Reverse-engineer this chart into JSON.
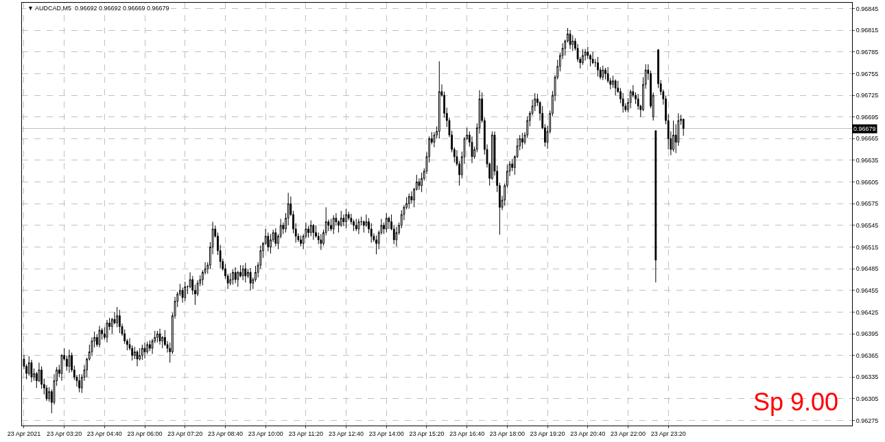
{
  "chart_data": {
    "type": "candlestick",
    "title": "▼ AUDCAD,M5  0.96692 0.96692 0.96669 0.96679",
    "x": [
      "2021-04-23T02:00",
      "2021-04-23T02:05",
      "2021-04-23T02:10",
      "2021-04-23T02:15",
      "2021-04-23T02:20",
      "2021-04-23T02:25",
      "2021-04-23T02:30",
      "2021-04-23T02:35",
      "2021-04-23T02:40",
      "2021-04-23T02:45",
      "2021-04-23T02:50",
      "2021-04-23T02:55",
      "2021-04-23T03:00",
      "2021-04-23T03:05",
      "2021-04-23T03:10",
      "2021-04-23T03:15",
      "2021-04-23T03:20",
      "2021-04-23T03:25",
      "2021-04-23T03:30",
      "2021-04-23T03:35",
      "2021-04-23T03:40",
      "2021-04-23T03:45",
      "2021-04-23T03:50",
      "2021-04-23T03:55",
      "2021-04-23T04:00",
      "2021-04-23T04:05",
      "2021-04-23T04:10",
      "2021-04-23T04:15",
      "2021-04-23T04:20",
      "2021-04-23T04:25",
      "2021-04-23T04:30",
      "2021-04-23T04:35",
      "2021-04-23T04:40",
      "2021-04-23T04:45",
      "2021-04-23T04:50",
      "2021-04-23T04:55",
      "2021-04-23T05:00",
      "2021-04-23T05:05",
      "2021-04-23T05:10",
      "2021-04-23T05:15",
      "2021-04-23T05:20",
      "2021-04-23T05:25",
      "2021-04-23T05:30",
      "2021-04-23T05:35",
      "2021-04-23T05:40",
      "2021-04-23T05:45",
      "2021-04-23T05:50",
      "2021-04-23T05:55",
      "2021-04-23T06:00",
      "2021-04-23T06:05",
      "2021-04-23T06:10",
      "2021-04-23T06:15",
      "2021-04-23T06:20",
      "2021-04-23T06:25",
      "2021-04-23T06:30",
      "2021-04-23T06:35",
      "2021-04-23T06:40",
      "2021-04-23T06:45",
      "2021-04-23T06:50",
      "2021-04-23T06:55",
      "2021-04-23T07:00",
      "2021-04-23T07:05",
      "2021-04-23T07:10",
      "2021-04-23T07:15",
      "2021-04-23T07:20",
      "2021-04-23T07:25",
      "2021-04-23T07:30",
      "2021-04-23T07:35",
      "2021-04-23T07:40",
      "2021-04-23T07:45",
      "2021-04-23T07:50",
      "2021-04-23T07:55",
      "2021-04-23T08:00",
      "2021-04-23T08:05",
      "2021-04-23T08:10",
      "2021-04-23T08:15",
      "2021-04-23T08:20",
      "2021-04-23T08:25",
      "2021-04-23T08:30",
      "2021-04-23T08:35",
      "2021-04-23T08:40",
      "2021-04-23T08:45",
      "2021-04-23T08:50",
      "2021-04-23T08:55",
      "2021-04-23T09:00",
      "2021-04-23T09:05",
      "2021-04-23T09:10",
      "2021-04-23T09:15",
      "2021-04-23T09:20",
      "2021-04-23T09:25",
      "2021-04-23T09:30",
      "2021-04-23T09:35",
      "2021-04-23T09:40",
      "2021-04-23T09:45",
      "2021-04-23T09:50",
      "2021-04-23T09:55",
      "2021-04-23T10:00",
      "2021-04-23T10:05",
      "2021-04-23T10:10",
      "2021-04-23T10:15",
      "2021-04-23T10:20",
      "2021-04-23T10:25",
      "2021-04-23T10:30",
      "2021-04-23T10:35",
      "2021-04-23T10:40",
      "2021-04-23T10:45",
      "2021-04-23T10:50",
      "2021-04-23T10:55",
      "2021-04-23T11:00",
      "2021-04-23T11:05",
      "2021-04-23T11:10",
      "2021-04-23T11:15",
      "2021-04-23T11:20",
      "2021-04-23T11:25",
      "2021-04-23T11:30",
      "2021-04-23T11:35",
      "2021-04-23T11:40",
      "2021-04-23T11:45",
      "2021-04-23T11:50",
      "2021-04-23T11:55",
      "2021-04-23T12:00",
      "2021-04-23T12:05",
      "2021-04-23T12:10",
      "2021-04-23T12:15",
      "2021-04-23T12:20",
      "2021-04-23T12:25",
      "2021-04-23T12:30",
      "2021-04-23T12:35",
      "2021-04-23T12:40",
      "2021-04-23T12:45",
      "2021-04-23T12:50",
      "2021-04-23T12:55",
      "2021-04-23T13:00",
      "2021-04-23T13:05",
      "2021-04-23T13:10",
      "2021-04-23T13:15",
      "2021-04-23T13:20",
      "2021-04-23T13:25",
      "2021-04-23T13:30",
      "2021-04-23T13:35",
      "2021-04-23T13:40",
      "2021-04-23T13:45",
      "2021-04-23T13:50",
      "2021-04-23T13:55",
      "2021-04-23T14:00",
      "2021-04-23T14:05",
      "2021-04-23T14:10",
      "2021-04-23T14:15",
      "2021-04-23T14:20",
      "2021-04-23T14:25",
      "2021-04-23T14:30",
      "2021-04-23T14:35",
      "2021-04-23T14:40",
      "2021-04-23T14:45",
      "2021-04-23T14:50",
      "2021-04-23T14:55",
      "2021-04-23T15:00",
      "2021-04-23T15:05",
      "2021-04-23T15:10",
      "2021-04-23T15:15",
      "2021-04-23T15:20",
      "2021-04-23T15:25",
      "2021-04-23T15:30",
      "2021-04-23T15:35",
      "2021-04-23T15:40",
      "2021-04-23T15:45",
      "2021-04-23T15:50",
      "2021-04-23T15:55",
      "2021-04-23T16:00",
      "2021-04-23T16:05",
      "2021-04-23T16:10",
      "2021-04-23T16:15",
      "2021-04-23T16:20",
      "2021-04-23T16:25",
      "2021-04-23T16:30",
      "2021-04-23T16:35",
      "2021-04-23T16:40",
      "2021-04-23T16:45",
      "2021-04-23T16:50",
      "2021-04-23T16:55",
      "2021-04-23T17:00",
      "2021-04-23T17:05",
      "2021-04-23T17:10",
      "2021-04-23T17:15",
      "2021-04-23T17:20",
      "2021-04-23T17:25",
      "2021-04-23T17:30",
      "2021-04-23T17:35",
      "2021-04-23T17:40",
      "2021-04-23T17:45",
      "2021-04-23T17:50",
      "2021-04-23T17:55",
      "2021-04-23T18:00",
      "2021-04-23T18:05",
      "2021-04-23T18:10",
      "2021-04-23T18:15",
      "2021-04-23T18:20",
      "2021-04-23T18:25",
      "2021-04-23T18:30",
      "2021-04-23T18:35",
      "2021-04-23T18:40",
      "2021-04-23T18:45",
      "2021-04-23T18:50",
      "2021-04-23T18:55",
      "2021-04-23T19:00",
      "2021-04-23T19:05",
      "2021-04-23T19:10",
      "2021-04-23T19:15",
      "2021-04-23T19:20",
      "2021-04-23T19:25",
      "2021-04-23T19:30",
      "2021-04-23T19:35",
      "2021-04-23T19:40",
      "2021-04-23T19:45",
      "2021-04-23T19:50",
      "2021-04-23T19:55",
      "2021-04-23T20:00",
      "2021-04-23T20:05",
      "2021-04-23T20:10",
      "2021-04-23T20:15",
      "2021-04-23T20:20",
      "2021-04-23T20:25",
      "2021-04-23T20:30",
      "2021-04-23T20:35",
      "2021-04-23T20:40",
      "2021-04-23T20:45",
      "2021-04-23T20:50",
      "2021-04-23T20:55",
      "2021-04-23T21:00",
      "2021-04-23T21:05",
      "2021-04-23T21:10",
      "2021-04-23T21:15",
      "2021-04-23T21:20",
      "2021-04-23T21:25",
      "2021-04-23T21:30",
      "2021-04-23T21:35",
      "2021-04-23T21:40",
      "2021-04-23T21:45",
      "2021-04-23T21:50",
      "2021-04-23T21:55",
      "2021-04-23T22:00",
      "2021-04-23T22:05",
      "2021-04-23T22:10",
      "2021-04-23T22:15",
      "2021-04-23T22:20",
      "2021-04-23T22:25",
      "2021-04-23T22:30",
      "2021-04-23T22:35",
      "2021-04-23T22:40",
      "2021-04-23T22:45",
      "2021-04-23T22:50",
      "2021-04-23T22:55",
      "2021-04-23T23:00",
      "2021-04-23T23:05",
      "2021-04-23T23:10",
      "2021-04-23T23:15",
      "2021-04-23T23:20",
      "2021-04-23T23:25",
      "2021-04-23T23:30",
      "2021-04-23T23:35",
      "2021-04-23T23:40",
      "2021-04-23T23:45",
      "2021-04-23T23:50"
    ],
    "ohlc": [
      [
        0.9636,
        0.96366,
        0.96346,
        0.9635
      ],
      [
        0.9635,
        0.96353,
        0.96332,
        0.9634
      ],
      [
        0.9634,
        0.96364,
        0.96337,
        0.96355
      ],
      [
        0.96355,
        0.96359,
        0.96328,
        0.96335
      ],
      [
        0.96335,
        0.96347,
        0.9633,
        0.9634
      ],
      [
        0.9634,
        0.96342,
        0.9632,
        0.9633
      ],
      [
        0.9633,
        0.96355,
        0.96328,
        0.96345
      ],
      [
        0.96345,
        0.9635,
        0.96319,
        0.96325
      ],
      [
        0.96325,
        0.96333,
        0.96311,
        0.9632
      ],
      [
        0.9632,
        0.96324,
        0.96302,
        0.96305
      ],
      [
        0.96305,
        0.96321,
        0.96301,
        0.96315
      ],
      [
        0.96315,
        0.96318,
        0.96285,
        0.963
      ],
      [
        0.963,
        0.96339,
        0.96297,
        0.9633
      ],
      [
        0.9633,
        0.96349,
        0.96323,
        0.96345
      ],
      [
        0.96345,
        0.96352,
        0.96335,
        0.9634
      ],
      [
        0.9634,
        0.96367,
        0.9633,
        0.96365
      ],
      [
        0.96365,
        0.96375,
        0.96358,
        0.9636
      ],
      [
        0.9636,
        0.96365,
        0.96344,
        0.9635
      ],
      [
        0.9635,
        0.96373,
        0.96341,
        0.96365
      ],
      [
        0.96365,
        0.96369,
        0.96342,
        0.96345
      ],
      [
        0.96345,
        0.96351,
        0.96331,
        0.96335
      ],
      [
        0.96335,
        0.96338,
        0.96322,
        0.9633
      ],
      [
        0.9633,
        0.96339,
        0.96314,
        0.9632
      ],
      [
        0.9632,
        0.96339,
        0.96313,
        0.96335
      ],
      [
        0.96335,
        0.96352,
        0.9633,
        0.96345
      ],
      [
        0.96345,
        0.96362,
        0.96335,
        0.9636
      ],
      [
        0.9636,
        0.9638,
        0.96358,
        0.9637
      ],
      [
        0.9637,
        0.9639,
        0.96364,
        0.96385
      ],
      [
        0.96385,
        0.96398,
        0.96376,
        0.9639
      ],
      [
        0.9639,
        0.96394,
        0.96377,
        0.9638
      ],
      [
        0.9638,
        0.96406,
        0.96376,
        0.964
      ],
      [
        0.964,
        0.96403,
        0.96387,
        0.96395
      ],
      [
        0.96395,
        0.96404,
        0.96387,
        0.9639
      ],
      [
        0.9639,
        0.96414,
        0.96383,
        0.9641
      ],
      [
        0.9641,
        0.96417,
        0.964,
        0.96405
      ],
      [
        0.96405,
        0.96417,
        0.96395,
        0.96415
      ],
      [
        0.96415,
        0.96425,
        0.96408,
        0.9641
      ],
      [
        0.9641,
        0.96432,
        0.96404,
        0.9642
      ],
      [
        0.9642,
        0.96428,
        0.96396,
        0.96405
      ],
      [
        0.96405,
        0.96409,
        0.96392,
        0.96395
      ],
      [
        0.96395,
        0.96401,
        0.96381,
        0.96385
      ],
      [
        0.96385,
        0.96388,
        0.96372,
        0.9638
      ],
      [
        0.9638,
        0.96389,
        0.96372,
        0.96375
      ],
      [
        0.96375,
        0.96379,
        0.96358,
        0.96365
      ],
      [
        0.96365,
        0.96377,
        0.9636,
        0.9637
      ],
      [
        0.9637,
        0.96372,
        0.9635,
        0.9636
      ],
      [
        0.9636,
        0.96375,
        0.96358,
        0.96365
      ],
      [
        0.96365,
        0.9638,
        0.96359,
        0.96375
      ],
      [
        0.96375,
        0.96383,
        0.96361,
        0.9637
      ],
      [
        0.9637,
        0.96384,
        0.96367,
        0.9638
      ],
      [
        0.9638,
        0.96386,
        0.96371,
        0.96375
      ],
      [
        0.96375,
        0.96388,
        0.96367,
        0.96385
      ],
      [
        0.96385,
        0.96399,
        0.96382,
        0.9639
      ],
      [
        0.9639,
        0.96399,
        0.96383,
        0.96395
      ],
      [
        0.96395,
        0.96402,
        0.9638,
        0.96385
      ],
      [
        0.96385,
        0.96392,
        0.96375,
        0.9639
      ],
      [
        0.9639,
        0.964,
        0.96378,
        0.9638
      ],
      [
        0.9638,
        0.96385,
        0.96369,
        0.96375
      ],
      [
        0.96375,
        0.96383,
        0.96355,
        0.9637
      ],
      [
        0.9637,
        0.96424,
        0.96367,
        0.9642
      ],
      [
        0.9642,
        0.96446,
        0.96416,
        0.9644
      ],
      [
        0.9644,
        0.96453,
        0.96432,
        0.9645
      ],
      [
        0.9645,
        0.96464,
        0.96447,
        0.96455
      ],
      [
        0.96455,
        0.96459,
        0.96438,
        0.96445
      ],
      [
        0.96445,
        0.96467,
        0.9644,
        0.9646
      ],
      [
        0.9646,
        0.96462,
        0.9645,
        0.9646
      ],
      [
        0.9646,
        0.9648,
        0.96458,
        0.9647
      ],
      [
        0.9647,
        0.96475,
        0.96449,
        0.96455
      ],
      [
        0.96455,
        0.96463,
        0.96435,
        0.9645
      ],
      [
        0.9645,
        0.96469,
        0.96447,
        0.96465
      ],
      [
        0.96465,
        0.96476,
        0.96461,
        0.9647
      ],
      [
        0.9647,
        0.96483,
        0.96462,
        0.9648
      ],
      [
        0.9648,
        0.96494,
        0.96477,
        0.96485
      ],
      [
        0.96485,
        0.96494,
        0.96478,
        0.9649
      ],
      [
        0.9649,
        0.96522,
        0.96485,
        0.96515
      ],
      [
        0.96515,
        0.9655,
        0.96505,
        0.9654
      ],
      [
        0.9654,
        0.96545,
        0.96528,
        0.9653
      ],
      [
        0.9653,
        0.96535,
        0.96504,
        0.9651
      ],
      [
        0.9651,
        0.96518,
        0.96486,
        0.96495
      ],
      [
        0.96495,
        0.96499,
        0.96482,
        0.96485
      ],
      [
        0.96485,
        0.96491,
        0.96471,
        0.96475
      ],
      [
        0.96475,
        0.96478,
        0.96457,
        0.96465
      ],
      [
        0.96465,
        0.96479,
        0.96462,
        0.9647
      ],
      [
        0.9647,
        0.96484,
        0.96463,
        0.9648
      ],
      [
        0.9648,
        0.96487,
        0.96465,
        0.9647
      ],
      [
        0.9647,
        0.96482,
        0.9646,
        0.9648
      ],
      [
        0.9648,
        0.9649,
        0.96473,
        0.96475
      ],
      [
        0.96475,
        0.9649,
        0.96469,
        0.96485
      ],
      [
        0.96485,
        0.96493,
        0.96466,
        0.96475
      ],
      [
        0.96475,
        0.96484,
        0.96472,
        0.9648
      ],
      [
        0.9648,
        0.96486,
        0.96455,
        0.96465
      ],
      [
        0.96465,
        0.96473,
        0.96457,
        0.9647
      ],
      [
        0.9647,
        0.96489,
        0.96467,
        0.9648
      ],
      [
        0.9648,
        0.96494,
        0.96473,
        0.9649
      ],
      [
        0.9649,
        0.96517,
        0.96485,
        0.9651
      ],
      [
        0.9651,
        0.96522,
        0.965,
        0.9652
      ],
      [
        0.9652,
        0.9654,
        0.96518,
        0.9653
      ],
      [
        0.9653,
        0.96535,
        0.96509,
        0.96515
      ],
      [
        0.96515,
        0.96533,
        0.96506,
        0.96525
      ],
      [
        0.96525,
        0.96539,
        0.96522,
        0.96535
      ],
      [
        0.96535,
        0.96541,
        0.96516,
        0.9652
      ],
      [
        0.9652,
        0.96533,
        0.96512,
        0.9653
      ],
      [
        0.9653,
        0.96554,
        0.96527,
        0.96545
      ],
      [
        0.96545,
        0.96549,
        0.96533,
        0.9654
      ],
      [
        0.9654,
        0.96562,
        0.96535,
        0.96555
      ],
      [
        0.96555,
        0.9659,
        0.96545,
        0.96575
      ],
      [
        0.96575,
        0.96585,
        0.96558,
        0.9656
      ],
      [
        0.9656,
        0.96565,
        0.96534,
        0.9654
      ],
      [
        0.9654,
        0.96548,
        0.96521,
        0.9653
      ],
      [
        0.9653,
        0.96534,
        0.96522,
        0.96525
      ],
      [
        0.96525,
        0.96531,
        0.96516,
        0.9652
      ],
      [
        0.9652,
        0.96533,
        0.96512,
        0.9653
      ],
      [
        0.9653,
        0.96549,
        0.96527,
        0.9654
      ],
      [
        0.9654,
        0.96544,
        0.96528,
        0.96535
      ],
      [
        0.96535,
        0.96552,
        0.9653,
        0.96545
      ],
      [
        0.96545,
        0.96547,
        0.96525,
        0.96535
      ],
      [
        0.96535,
        0.96545,
        0.96528,
        0.9653
      ],
      [
        0.9653,
        0.96535,
        0.96519,
        0.96525
      ],
      [
        0.96525,
        0.96533,
        0.96511,
        0.9652
      ],
      [
        0.9652,
        0.96539,
        0.96517,
        0.96535
      ],
      [
        0.96535,
        0.9657,
        0.96531,
        0.9655
      ],
      [
        0.9655,
        0.96553,
        0.96537,
        0.96545
      ],
      [
        0.96545,
        0.96554,
        0.96537,
        0.9654
      ],
      [
        0.9654,
        0.96559,
        0.96533,
        0.96555
      ],
      [
        0.96555,
        0.96562,
        0.96545,
        0.9655
      ],
      [
        0.9655,
        0.96552,
        0.96535,
        0.96545
      ],
      [
        0.96545,
        0.96565,
        0.96543,
        0.96555
      ],
      [
        0.96555,
        0.9656,
        0.96544,
        0.9655
      ],
      [
        0.9655,
        0.96568,
        0.96541,
        0.9656
      ],
      [
        0.9656,
        0.96564,
        0.96552,
        0.96555
      ],
      [
        0.96555,
        0.96561,
        0.96546,
        0.9655
      ],
      [
        0.9655,
        0.96553,
        0.96537,
        0.96545
      ],
      [
        0.96545,
        0.96554,
        0.96537,
        0.9654
      ],
      [
        0.9654,
        0.96554,
        0.96533,
        0.9655
      ],
      [
        0.9655,
        0.96557,
        0.96545,
        0.9655
      ],
      [
        0.9655,
        0.96552,
        0.96535,
        0.96545
      ],
      [
        0.96545,
        0.9656,
        0.96543,
        0.9655
      ],
      [
        0.9655,
        0.96555,
        0.96534,
        0.9654
      ],
      [
        0.9654,
        0.96548,
        0.96521,
        0.9653
      ],
      [
        0.9653,
        0.96534,
        0.96522,
        0.96525
      ],
      [
        0.96525,
        0.96531,
        0.96505,
        0.9652
      ],
      [
        0.9652,
        0.96538,
        0.96512,
        0.96535
      ],
      [
        0.96535,
        0.96554,
        0.96532,
        0.96545
      ],
      [
        0.96545,
        0.96549,
        0.96533,
        0.9654
      ],
      [
        0.9654,
        0.96562,
        0.96535,
        0.96555
      ],
      [
        0.96555,
        0.96557,
        0.9654,
        0.9655
      ],
      [
        0.9655,
        0.9656,
        0.96538,
        0.9654
      ],
      [
        0.9654,
        0.96545,
        0.96519,
        0.96525
      ],
      [
        0.96525,
        0.96543,
        0.96516,
        0.96535
      ],
      [
        0.96535,
        0.96549,
        0.96532,
        0.96545
      ],
      [
        0.96545,
        0.96566,
        0.96541,
        0.9656
      ],
      [
        0.9656,
        0.96573,
        0.96552,
        0.9657
      ],
      [
        0.9657,
        0.96584,
        0.96567,
        0.96575
      ],
      [
        0.96575,
        0.96589,
        0.96568,
        0.96585
      ],
      [
        0.96585,
        0.96592,
        0.96575,
        0.9658
      ],
      [
        0.9658,
        0.96597,
        0.9657,
        0.96595
      ],
      [
        0.96595,
        0.96615,
        0.96593,
        0.96605
      ],
      [
        0.96605,
        0.9661,
        0.96594,
        0.966
      ],
      [
        0.966,
        0.96618,
        0.96591,
        0.9661
      ],
      [
        0.9661,
        0.96624,
        0.96607,
        0.9662
      ],
      [
        0.9662,
        0.96646,
        0.96616,
        0.9664
      ],
      [
        0.9664,
        0.96668,
        0.96632,
        0.96665
      ],
      [
        0.96665,
        0.96674,
        0.96657,
        0.9666
      ],
      [
        0.9666,
        0.96674,
        0.96653,
        0.9667
      ],
      [
        0.9667,
        0.96682,
        0.96665,
        0.96675
      ],
      [
        0.96675,
        0.96772,
        0.96665,
        0.9673
      ],
      [
        0.9673,
        0.9674,
        0.96723,
        0.96725
      ],
      [
        0.96725,
        0.9673,
        0.96694,
        0.967
      ],
      [
        0.967,
        0.96708,
        0.96681,
        0.9669
      ],
      [
        0.9669,
        0.96694,
        0.96667,
        0.9667
      ],
      [
        0.9667,
        0.96676,
        0.96646,
        0.9665
      ],
      [
        0.9665,
        0.96653,
        0.96632,
        0.9664
      ],
      [
        0.9664,
        0.96649,
        0.96627,
        0.9663
      ],
      [
        0.9663,
        0.96634,
        0.966,
        0.96615
      ],
      [
        0.96615,
        0.96647,
        0.9661,
        0.9664
      ],
      [
        0.9664,
        0.96667,
        0.9663,
        0.96665
      ],
      [
        0.96665,
        0.9668,
        0.96663,
        0.9667
      ],
      [
        0.9667,
        0.96675,
        0.96654,
        0.9666
      ],
      [
        0.9666,
        0.96668,
        0.96631,
        0.9664
      ],
      [
        0.9664,
        0.96654,
        0.96637,
        0.9665
      ],
      [
        0.9665,
        0.96686,
        0.96646,
        0.9668
      ],
      [
        0.9668,
        0.96732,
        0.96672,
        0.9672
      ],
      [
        0.9672,
        0.96729,
        0.96687,
        0.9669
      ],
      [
        0.9669,
        0.96694,
        0.96643,
        0.9665
      ],
      [
        0.9665,
        0.96657,
        0.96625,
        0.9663
      ],
      [
        0.9663,
        0.96632,
        0.966,
        0.9661
      ],
      [
        0.9661,
        0.96675,
        0.96608,
        0.9667
      ],
      [
        0.9667,
        0.96675,
        0.96614,
        0.9662
      ],
      [
        0.9662,
        0.96628,
        0.96591,
        0.966
      ],
      [
        0.966,
        0.96604,
        0.96532,
        0.9657
      ],
      [
        0.9657,
        0.96586,
        0.96566,
        0.9658
      ],
      [
        0.9658,
        0.96603,
        0.96572,
        0.966
      ],
      [
        0.966,
        0.96629,
        0.96597,
        0.9662
      ],
      [
        0.9662,
        0.96634,
        0.96613,
        0.9663
      ],
      [
        0.9663,
        0.96637,
        0.9662,
        0.96625
      ],
      [
        0.96625,
        0.96642,
        0.96615,
        0.9664
      ],
      [
        0.9664,
        0.96665,
        0.96638,
        0.96655
      ],
      [
        0.96655,
        0.9667,
        0.96649,
        0.96665
      ],
      [
        0.96665,
        0.96673,
        0.96651,
        0.9666
      ],
      [
        0.9666,
        0.96674,
        0.96657,
        0.9667
      ],
      [
        0.9667,
        0.96696,
        0.96666,
        0.9669
      ],
      [
        0.9669,
        0.96703,
        0.96682,
        0.967
      ],
      [
        0.967,
        0.96719,
        0.96697,
        0.9671
      ],
      [
        0.9671,
        0.96728,
        0.96703,
        0.9672
      ],
      [
        0.9672,
        0.96727,
        0.9671,
        0.96715
      ],
      [
        0.96715,
        0.96717,
        0.9669,
        0.967
      ],
      [
        0.967,
        0.9671,
        0.96678,
        0.9668
      ],
      [
        0.9668,
        0.96685,
        0.96654,
        0.9666
      ],
      [
        0.9666,
        0.96683,
        0.96651,
        0.96675
      ],
      [
        0.96675,
        0.96704,
        0.96672,
        0.967
      ],
      [
        0.967,
        0.96731,
        0.96696,
        0.96725
      ],
      [
        0.96725,
        0.96753,
        0.96717,
        0.9675
      ],
      [
        0.9675,
        0.96774,
        0.96747,
        0.96765
      ],
      [
        0.96765,
        0.96784,
        0.96758,
        0.9678
      ],
      [
        0.9678,
        0.96797,
        0.96775,
        0.9679
      ],
      [
        0.9679,
        0.96802,
        0.9678,
        0.968
      ],
      [
        0.968,
        0.96818,
        0.96798,
        0.9681
      ],
      [
        0.9681,
        0.96815,
        0.96789,
        0.96795
      ],
      [
        0.96795,
        0.96808,
        0.96786,
        0.968
      ],
      [
        0.968,
        0.96804,
        0.96787,
        0.9679
      ],
      [
        0.9679,
        0.96796,
        0.96771,
        0.96775
      ],
      [
        0.96775,
        0.96778,
        0.96762,
        0.9677
      ],
      [
        0.9677,
        0.96789,
        0.96767,
        0.9678
      ],
      [
        0.9678,
        0.96789,
        0.96773,
        0.96785
      ],
      [
        0.96785,
        0.96792,
        0.96775,
        0.9678
      ],
      [
        0.9678,
        0.96782,
        0.96765,
        0.96775
      ],
      [
        0.96775,
        0.96785,
        0.96768,
        0.9677
      ],
      [
        0.9677,
        0.96775,
        0.96764,
        0.9677
      ],
      [
        0.9677,
        0.96778,
        0.96751,
        0.9676
      ],
      [
        0.9676,
        0.96764,
        0.96747,
        0.9675
      ],
      [
        0.9675,
        0.96766,
        0.96746,
        0.9676
      ],
      [
        0.9676,
        0.96763,
        0.96747,
        0.96755
      ],
      [
        0.96755,
        0.96764,
        0.96742,
        0.96745
      ],
      [
        0.96745,
        0.96749,
        0.96733,
        0.9674
      ],
      [
        0.9674,
        0.96752,
        0.96735,
        0.96745
      ],
      [
        0.96745,
        0.96747,
        0.96725,
        0.96735
      ],
      [
        0.96735,
        0.96745,
        0.96728,
        0.9673
      ],
      [
        0.9673,
        0.96735,
        0.96714,
        0.9672
      ],
      [
        0.9672,
        0.96728,
        0.96701,
        0.9671
      ],
      [
        0.9671,
        0.96714,
        0.96702,
        0.96705
      ],
      [
        0.96705,
        0.96721,
        0.96701,
        0.96715
      ],
      [
        0.96715,
        0.96733,
        0.96707,
        0.9673
      ],
      [
        0.9673,
        0.96739,
        0.96722,
        0.96725
      ],
      [
        0.96725,
        0.96729,
        0.96713,
        0.9672
      ],
      [
        0.9672,
        0.96727,
        0.96705,
        0.9671
      ],
      [
        0.9671,
        0.96712,
        0.96695,
        0.96705
      ],
      [
        0.96705,
        0.9675,
        0.96703,
        0.9674
      ],
      [
        0.9674,
        0.96768,
        0.96734,
        0.9676
      ],
      [
        0.9676,
        0.96768,
        0.96746,
        0.96755
      ],
      [
        0.96755,
        0.96759,
        0.96707,
        0.9671
      ],
      [
        0.96695,
        0.96729,
        0.9669,
        0.96725
      ],
      [
        0.96676,
        0.96676,
        0.96466,
        0.96497
      ],
      [
        0.96788,
        0.96788,
        0.96735,
        0.96741
      ],
      [
        0.96741,
        0.96746,
        0.96725,
        0.9673
      ],
      [
        0.9673,
        0.96733,
        0.96712,
        0.9672
      ],
      [
        0.9672,
        0.96724,
        0.96685,
        0.9669
      ],
      [
        0.9669,
        0.96699,
        0.9665,
        0.96665
      ],
      [
        0.96665,
        0.96675,
        0.96642,
        0.9665
      ],
      [
        0.9665,
        0.9669,
        0.96647,
        0.9667
      ],
      [
        0.9667,
        0.96685,
        0.96645,
        0.9666
      ],
      [
        0.9666,
        0.967,
        0.96655,
        0.9669
      ],
      [
        0.9669,
        0.96698,
        0.96684,
        0.96692
      ],
      [
        0.96692,
        0.96692,
        0.96669,
        0.96679
      ]
    ],
    "xlim": [
      "2021-04-23T01:56",
      "2021-04-24T05:25"
    ],
    "xticks": [
      {
        "value": "2021-04-23T02:00",
        "label": "23 Apr 2021"
      },
      {
        "value": "2021-04-23T03:20",
        "label": "23 Apr 03:20"
      },
      {
        "value": "2021-04-23T04:40",
        "label": "23 Apr 04:40"
      },
      {
        "value": "2021-04-23T06:00",
        "label": "23 Apr 06:00"
      },
      {
        "value": "2021-04-23T07:20",
        "label": "23 Apr 07:20"
      },
      {
        "value": "2021-04-23T08:40",
        "label": "23 Apr 08:40"
      },
      {
        "value": "2021-04-23T10:00",
        "label": "23 Apr 10:00"
      },
      {
        "value": "2021-04-23T11:20",
        "label": "23 Apr 11:20"
      },
      {
        "value": "2021-04-23T12:40",
        "label": "23 Apr 12:40"
      },
      {
        "value": "2021-04-23T14:00",
        "label": "23 Apr 14:00"
      },
      {
        "value": "2021-04-23T15:20",
        "label": "23 Apr 15:20"
      },
      {
        "value": "2021-04-23T16:40",
        "label": "23 Apr 16:40"
      },
      {
        "value": "2021-04-23T18:00",
        "label": "23 Apr 18:00"
      },
      {
        "value": "2021-04-23T19:20",
        "label": "23 Apr 19:20"
      },
      {
        "value": "2021-04-23T20:40",
        "label": "23 Apr 20:40"
      },
      {
        "value": "2021-04-23T22:00",
        "label": "23 Apr 22:00"
      },
      {
        "value": "2021-04-23T23:20",
        "label": "23 Apr 23:20"
      }
    ],
    "ylim": [
      0.96268,
      0.96853
    ],
    "yticks": [
      0.96275,
      0.96305,
      0.96335,
      0.96365,
      0.96395,
      0.96425,
      0.96455,
      0.96485,
      0.96515,
      0.96545,
      0.96575,
      0.96605,
      0.96635,
      0.96665,
      0.96695,
      0.96725,
      0.96755,
      0.96785,
      0.96815,
      0.96845
    ],
    "ref_lines": [
      {
        "axis": "y",
        "value": 0.96679,
        "label": "0.96679",
        "color": "#c0c0c0"
      }
    ],
    "annotations": [
      "Sp 9.00"
    ],
    "grid": true
  }
}
